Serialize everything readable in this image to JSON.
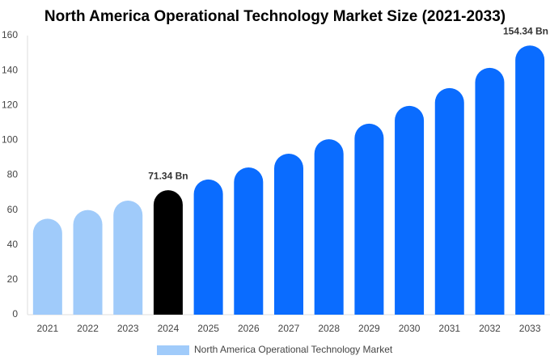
{
  "chart_data": {
    "type": "bar",
    "title": "North America Operational Technology Market Size (2021-2033)",
    "categories": [
      "2021",
      "2022",
      "2023",
      "2024",
      "2025",
      "2026",
      "2027",
      "2028",
      "2029",
      "2030",
      "2031",
      "2032",
      "2033"
    ],
    "series": [
      {
        "name": "North America Operational Technology Market",
        "color": "#a0cbfa",
        "values": [
          55,
          60,
          65.4,
          71.34,
          77.5,
          84.4,
          92.3,
          100.6,
          109.5,
          119.7,
          129.9,
          141.5,
          154.34
        ],
        "colors": [
          "#a0cbfa",
          "#a0cbfa",
          "#a0cbfa",
          "#000000",
          "#0a6cff",
          "#0a6cff",
          "#0a6cff",
          "#0a6cff",
          "#0a6cff",
          "#0a6cff",
          "#0a6cff",
          "#0a6cff",
          "#0a6cff"
        ],
        "value_labels": [
          null,
          null,
          null,
          "71.34 Bn",
          null,
          null,
          null,
          null,
          null,
          null,
          null,
          null,
          "154.34 Bn"
        ]
      }
    ],
    "ylim": [
      0,
      160
    ],
    "yticks": [
      0,
      20,
      40,
      60,
      80,
      100,
      120,
      140,
      160
    ],
    "grid": false
  }
}
